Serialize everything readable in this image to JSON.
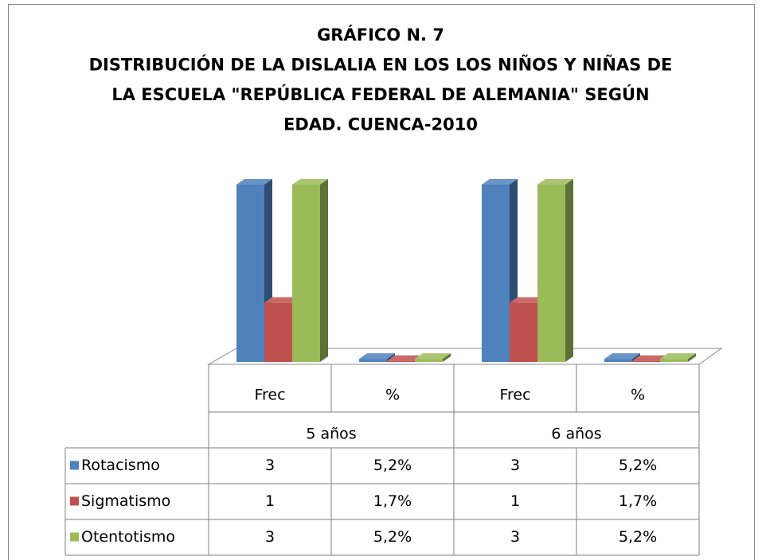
{
  "chart_data": {
    "type": "bar",
    "title": [
      "GRÁFICO N. 7",
      "DISTRIBUCIÓN DE LA DISLALIA EN LOS LOS NIÑOS Y NIÑAS DE",
      "LA ESCUELA \"REPÚBLICA FEDERAL DE ALEMANIA\" SEGÚN",
      "EDAD. CUENCA-2010"
    ],
    "categories": [
      "Frec",
      "%",
      "Frec",
      "%"
    ],
    "category_groups": [
      "5 años",
      "6 años"
    ],
    "series": [
      {
        "name": "Rotacismo",
        "color": "#4f81bd",
        "values": [
          3,
          0.052,
          3,
          0.052
        ],
        "value_labels": [
          "3",
          "5,2%",
          "3",
          "5,2%"
        ]
      },
      {
        "name": "Sigmatismo",
        "color": "#c0504d",
        "values": [
          1,
          0.017,
          1,
          0.017
        ],
        "value_labels": [
          "1",
          "1,7%",
          "1",
          "1,7%"
        ]
      },
      {
        "name": "Otentotismo",
        "color": "#9bbb59",
        "values": [
          3,
          0.052,
          3,
          0.052
        ],
        "value_labels": [
          "3",
          "5,2%",
          "3",
          "5,2%"
        ]
      }
    ],
    "data_table": true
  }
}
